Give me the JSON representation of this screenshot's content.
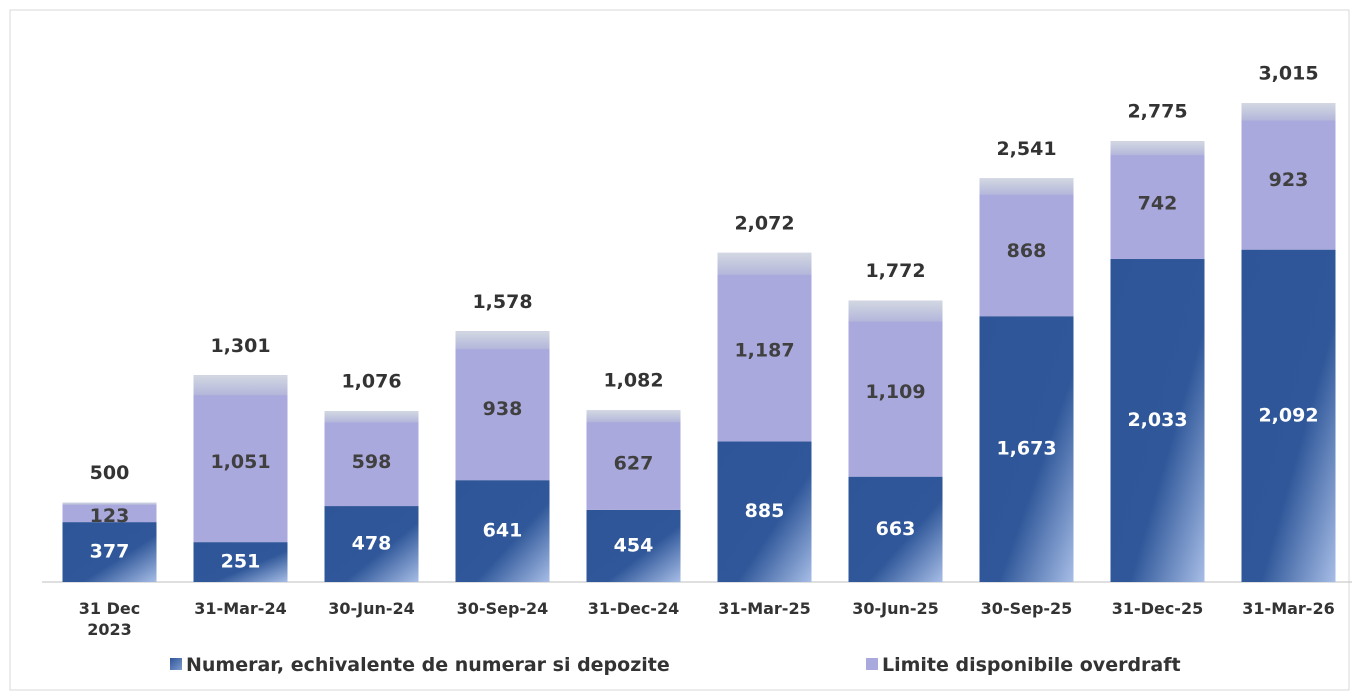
{
  "chart_data": {
    "type": "stacked_bar",
    "categories": [
      "31 Dec 2023",
      "31-Mar-24",
      "30-Jun-24",
      "30-Sep-24",
      "31-Dec-24",
      "31-Mar-25",
      "30-Jun-25",
      "30-Sep-25",
      "31-Dec-25",
      "31-Mar-26"
    ],
    "series": [
      {
        "name": "Numerar, echivalente de numerar si depozite",
        "color": "#2e5597",
        "values": [
          377,
          251,
          478,
          641,
          454,
          885,
          663,
          1673,
          2033,
          2092
        ],
        "value_labels": [
          "377",
          "251",
          "478",
          "641",
          "454",
          "885",
          "663",
          "1,673",
          "2,033",
          "2,092"
        ]
      },
      {
        "name": "Limite disponibile overdraft",
        "color": "#aaa9dd",
        "values": [
          123,
          1051,
          598,
          938,
          627,
          1187,
          1109,
          868,
          742,
          923
        ],
        "value_labels": [
          "123",
          "1,051",
          "598",
          "938",
          "627",
          "1,187",
          "1,109",
          "868",
          "742",
          "923"
        ]
      }
    ],
    "totals": [
      500,
      1301,
      1076,
      1578,
      1082,
      2072,
      1772,
      2541,
      2775,
      3015
    ],
    "total_labels": [
      "500",
      "1,301",
      "1,076",
      "1,578",
      "1,082",
      "2,072",
      "1,772",
      "2,541",
      "2,775",
      "3,015"
    ]
  }
}
